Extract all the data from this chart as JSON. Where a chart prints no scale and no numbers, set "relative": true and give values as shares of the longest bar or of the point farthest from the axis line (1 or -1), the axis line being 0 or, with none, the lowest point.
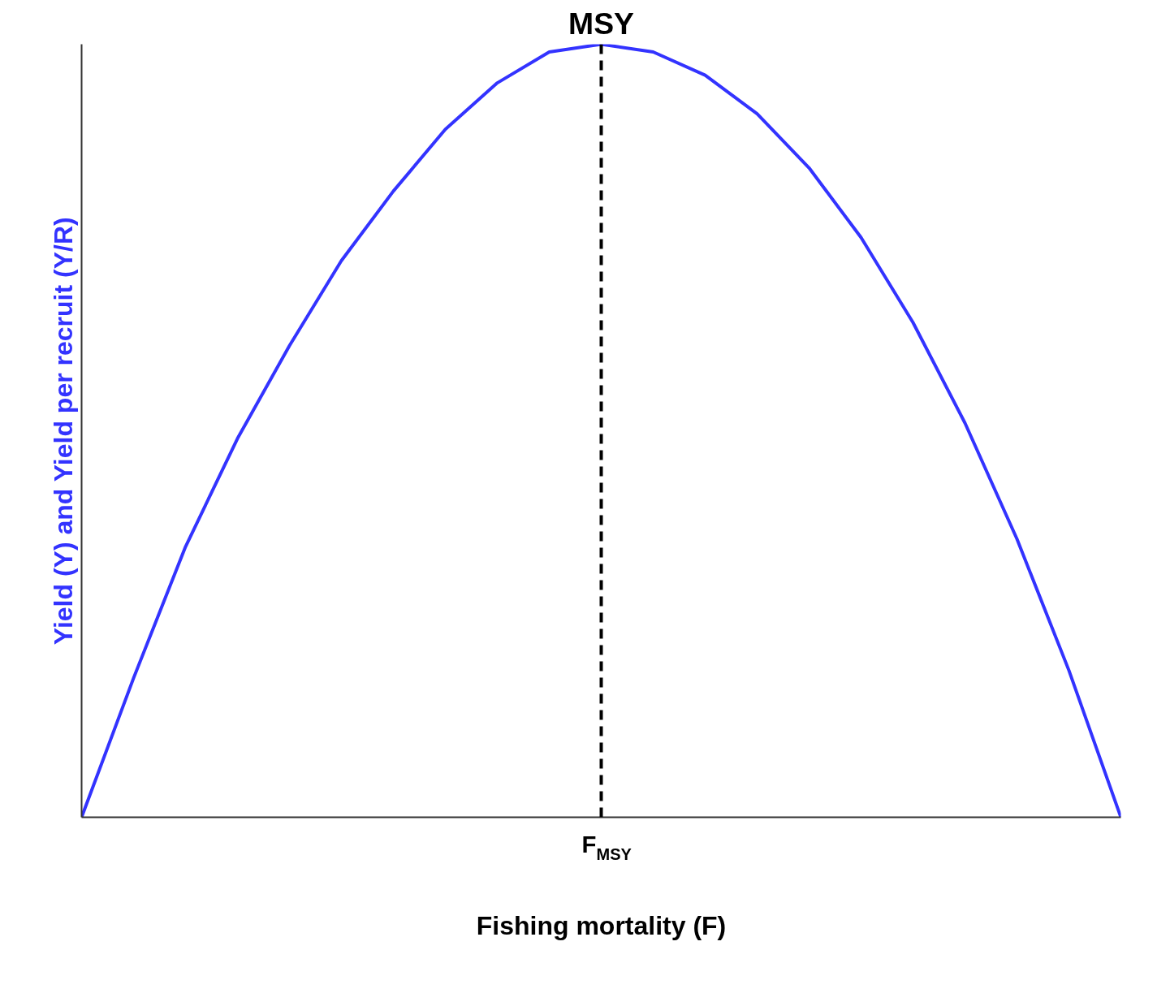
{
  "chart_data": {
    "type": "line",
    "title": "MSY",
    "xlabel": "Fishing mortality (F)",
    "ylabel": "Yield (Y) and Yield per recruit (Y/R)",
    "relative": true,
    "categories": [
      null,
      null,
      null,
      null,
      null,
      null,
      null,
      null,
      null,
      null,
      null,
      null,
      null,
      null,
      null,
      null,
      null,
      null,
      null,
      null,
      null
    ],
    "series": [
      {
        "color": "#3333ff",
        "values": [
          0,
          0.18,
          0.35,
          0.49,
          0.61,
          0.72,
          0.81,
          0.89,
          0.95,
          0.99,
          1.0,
          0.99,
          0.96,
          0.91,
          0.84,
          0.75,
          0.64,
          0.51,
          0.36,
          0.19,
          0
        ]
      }
    ],
    "annotations": [
      "F$_{MSY}$"
    ],
    "grid": false,
    "legend": false,
    "marker": "none",
    "line_style": "solid"
  }
}
